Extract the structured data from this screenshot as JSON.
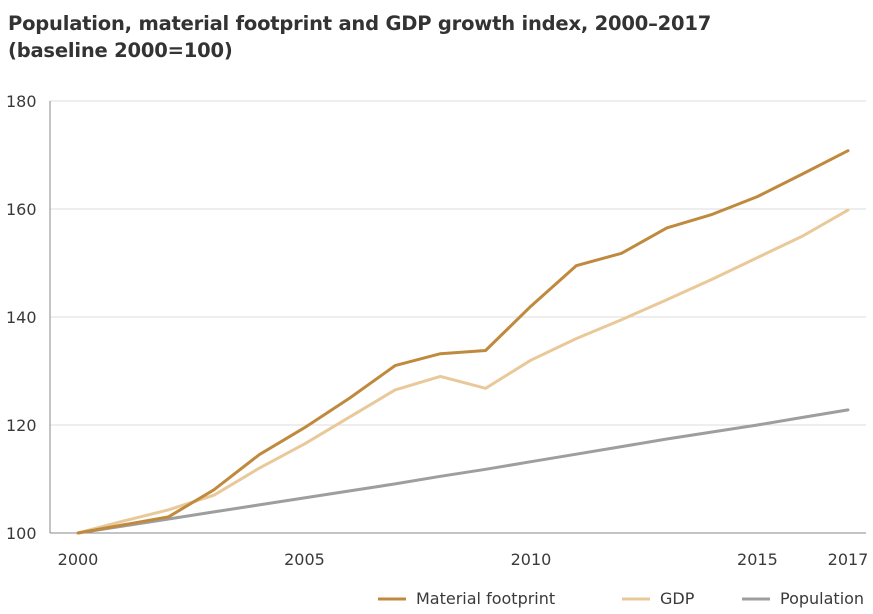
{
  "title": {
    "line1": "Population, material footprint and GDP growth index, 2000–2017",
    "line2": "(baseline 2000=100)"
  },
  "chart_data": {
    "type": "line",
    "title": "Population, material footprint and GDP growth index, 2000–2017",
    "subtitle": "(baseline 2000=100)",
    "xlim": [
      2000,
      2017
    ],
    "ylim": [
      100,
      180
    ],
    "x_ticks": [
      2000,
      2005,
      2010,
      2015,
      2017
    ],
    "y_ticks": [
      100,
      120,
      140,
      160,
      180
    ],
    "grid": "horizontal",
    "legend_position": "bottom-right",
    "x": [
      2000,
      2001,
      2002,
      2003,
      2004,
      2005,
      2006,
      2007,
      2008,
      2009,
      2010,
      2011,
      2012,
      2013,
      2014,
      2015,
      2016,
      2017
    ],
    "series": [
      {
        "name": "Material footprint",
        "color": "#c08a3e",
        "values": [
          100,
          101.5,
          103,
          108,
          114.5,
          119.5,
          125,
          131,
          133.2,
          133.8,
          142,
          149.5,
          151.8,
          156.5,
          159,
          162.3,
          166.5,
          170.8
        ]
      },
      {
        "name": "GDP",
        "color": "#e9c99a",
        "values": [
          100,
          102.2,
          104.3,
          107,
          112,
          116.5,
          121.5,
          126.5,
          129,
          126.8,
          132,
          136,
          139.5,
          143.2,
          147,
          151,
          155,
          159.8
        ]
      },
      {
        "name": "Population",
        "color": "#9e9e9e",
        "values": [
          100,
          101.3,
          102.6,
          103.9,
          105.2,
          106.5,
          107.8,
          109.1,
          110.5,
          111.8,
          113.2,
          114.6,
          116.0,
          117.4,
          118.7,
          120.0,
          121.4,
          122.8
        ]
      }
    ]
  }
}
